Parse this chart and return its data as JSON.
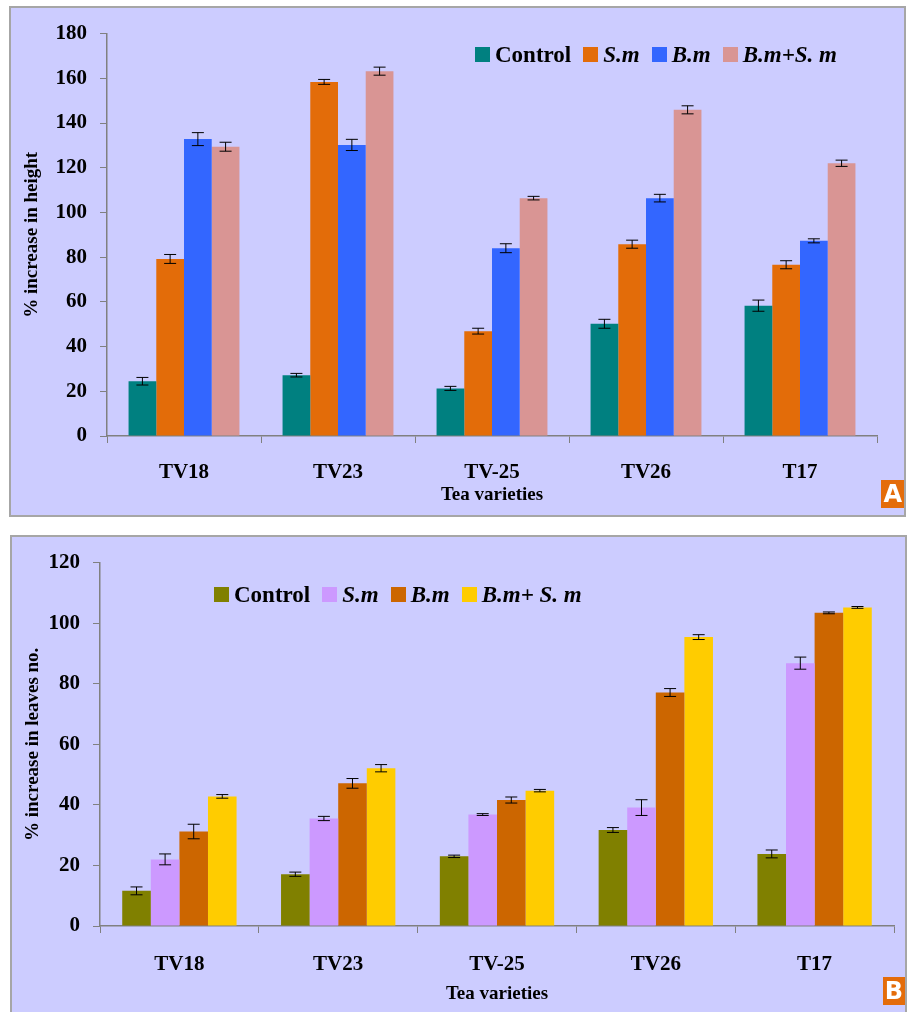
{
  "chart_data": [
    {
      "type": "bar",
      "categories": [
        "TV18",
        "TV23",
        "TV-25",
        "TV26",
        "T17"
      ],
      "xlabel": "Tea varieties",
      "ylabel": "% increase in height",
      "ylim": [
        0,
        180
      ],
      "yticks": [
        0,
        20,
        40,
        60,
        80,
        100,
        120,
        140,
        160,
        180
      ],
      "legend": "top right",
      "annotations": [
        "A"
      ],
      "series": [
        {
          "name": "Control",
          "color": "#008080",
          "values": [
            24.5,
            27.2,
            21.3,
            50.2,
            58.3
          ],
          "errors": [
            1.7,
            0.8,
            0.9,
            2.0,
            2.5
          ]
        },
        {
          "name": "S.m",
          "color": "#e36c09",
          "values": [
            79.2,
            158.4,
            46.9,
            85.8,
            76.6
          ],
          "errors": [
            2.0,
            1.1,
            1.3,
            1.8,
            1.8
          ]
        },
        {
          "name": "B.m",
          "color": "#3366ff",
          "values": [
            132.8,
            130.2,
            84.0,
            106.4,
            87.3
          ],
          "errors": [
            2.9,
            2.5,
            2.0,
            1.7,
            0.9
          ]
        },
        {
          "name": "B.m+S. m",
          "color": "#d99594",
          "values": [
            129.4,
            163.2,
            106.4,
            145.9,
            122.0
          ],
          "errors": [
            2.0,
            1.8,
            0.8,
            1.8,
            1.4
          ]
        }
      ]
    },
    {
      "type": "bar",
      "categories": [
        "TV18",
        "TV23",
        "TV-25",
        "TV26",
        "T17"
      ],
      "xlabel": "Tea varieties",
      "ylabel": "% increase in leaves no.",
      "ylim": [
        0,
        120
      ],
      "yticks": [
        0,
        20,
        40,
        60,
        80,
        100,
        120
      ],
      "legend": "top",
      "annotations": [
        "B"
      ],
      "series": [
        {
          "name": "Control",
          "color": "#808000",
          "values": [
            11.6,
            17.1,
            23.0,
            31.7,
            23.8
          ],
          "errors": [
            1.3,
            0.7,
            0.4,
            0.8,
            1.3
          ]
        },
        {
          "name": "S.m",
          "color": "#cc99ff",
          "values": [
            22.0,
            35.5,
            36.8,
            39.1,
            86.8
          ],
          "errors": [
            1.8,
            0.7,
            0.3,
            2.6,
            2.0
          ]
        },
        {
          "name": "B.m",
          "color": "#cc6600",
          "values": [
            31.2,
            47.1,
            41.6,
            77.1,
            103.4
          ],
          "errors": [
            2.4,
            1.6,
            1.0,
            1.3,
            0.3
          ]
        },
        {
          "name": "B.m+ S. m",
          "color": "#ffcc00",
          "values": [
            42.8,
            52.1,
            44.7,
            95.4,
            105.2
          ],
          "errors": [
            0.6,
            1.2,
            0.4,
            0.8,
            0.3
          ]
        }
      ]
    }
  ]
}
